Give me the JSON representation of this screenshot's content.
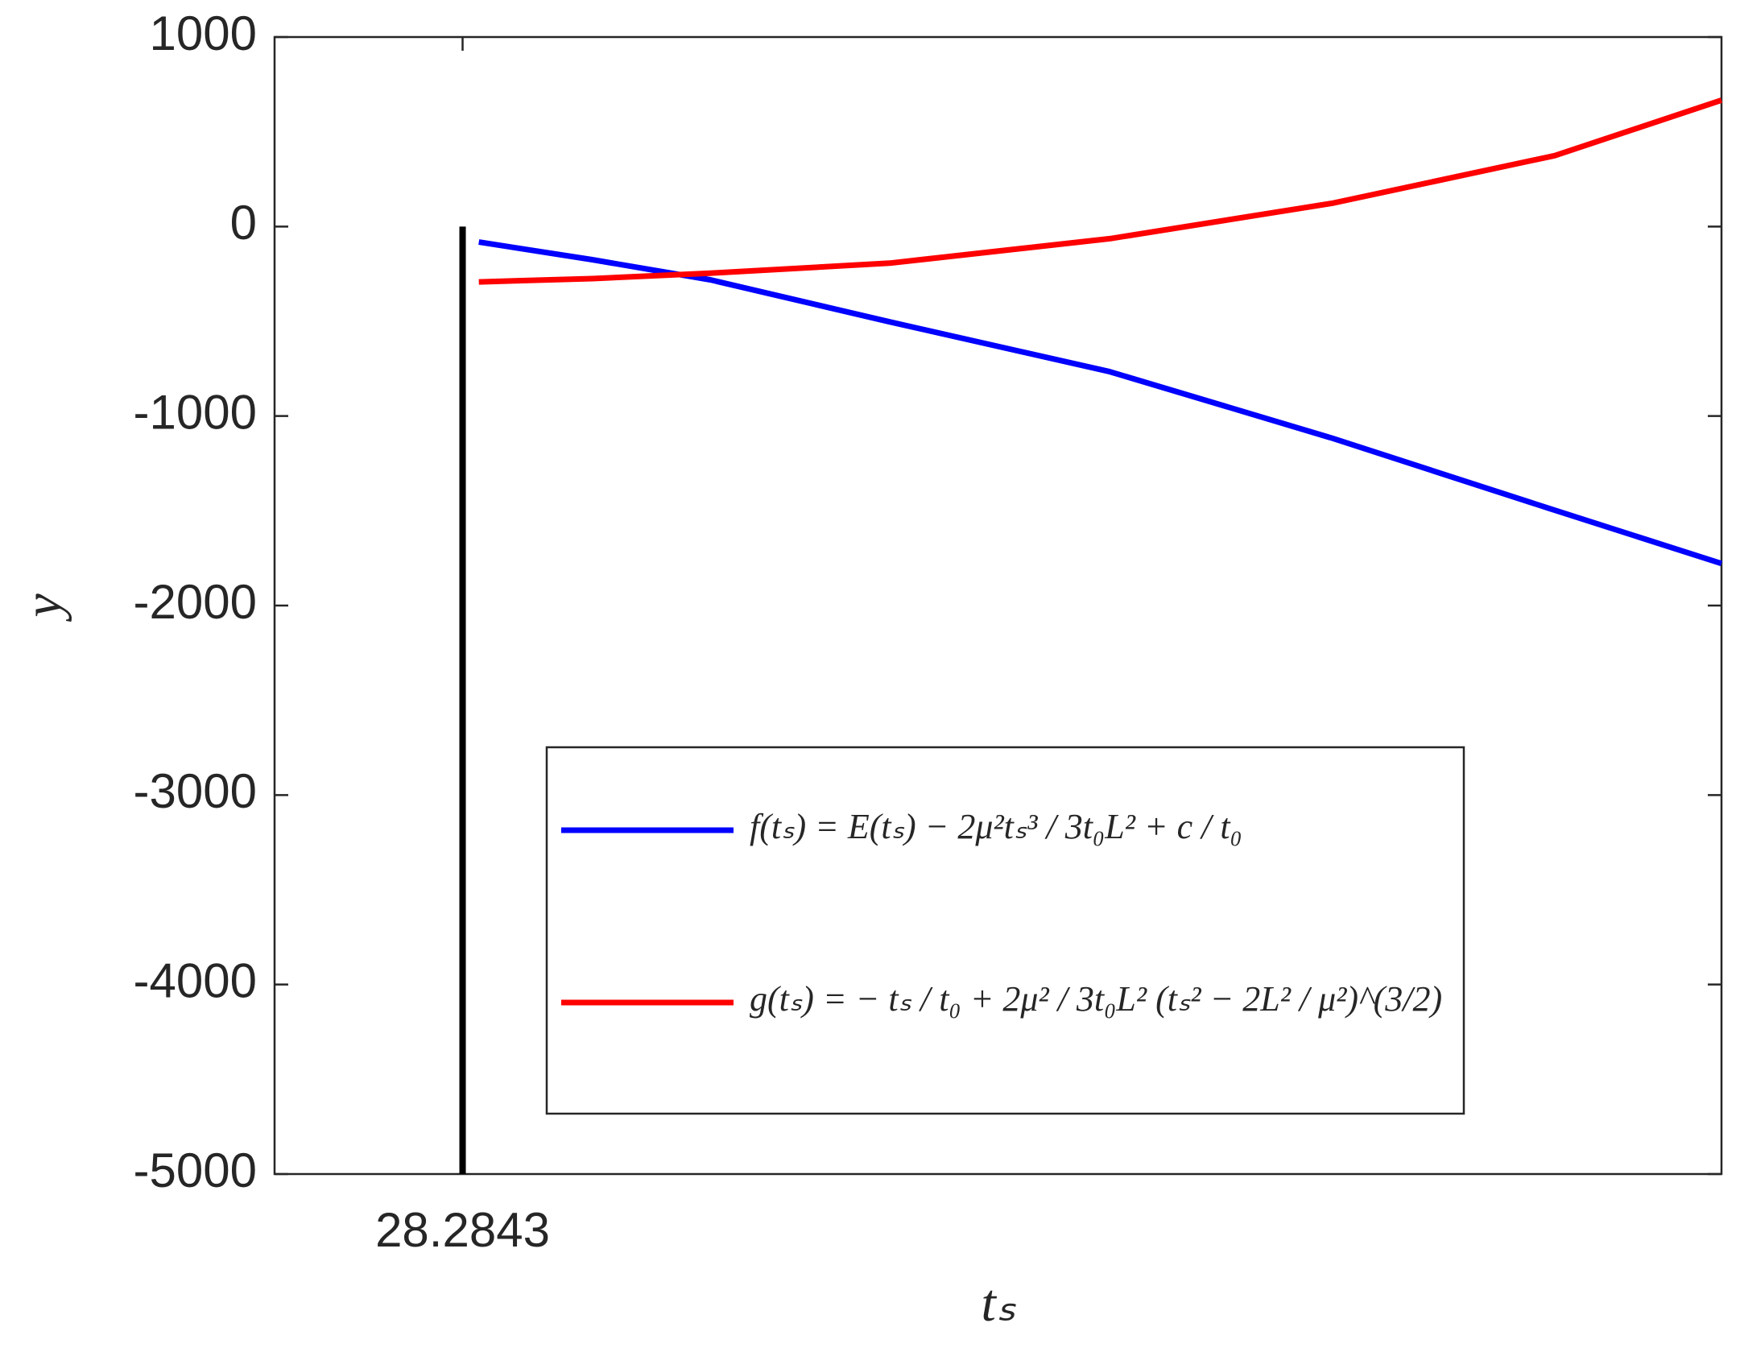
{
  "chart_data": {
    "type": "line",
    "x_label": "tₛ",
    "y_label": "y",
    "x": [
      29,
      34,
      39.2,
      47.1,
      56.8,
      66.6,
      76.4,
      83.75
    ],
    "series": [
      {
        "name": "f(tₛ) = E(tₛ) − 2μ²tₛ³ / 3t₀L² + c / t₀",
        "color": "#0000ff",
        "values": [
          -82,
          -175,
          -281,
          -503,
          -766,
          -1117,
          -1497,
          -1778
        ]
      },
      {
        "name": "g(tₛ) = − tₛ / t₀ + 2μ² / 3t₀L² (tₛ² − 2L² / μ²)^(3/2)",
        "color": "#ff0000",
        "values": [
          -292,
          -275,
          -246,
          -193,
          -64,
          123,
          374,
          667
        ]
      }
    ],
    "vline": {
      "x": 28.2843,
      "y": [
        -5000,
        0
      ],
      "color": "#000000"
    },
    "xlim": [
      20,
      83.75
    ],
    "xticks": [
      28.2843
    ],
    "ylim": [
      -5000,
      1000
    ],
    "yticks": [
      -5000,
      -4000,
      -3000,
      -2000,
      -1000,
      0,
      1000
    ],
    "legend": "lower right",
    "grid": false
  }
}
